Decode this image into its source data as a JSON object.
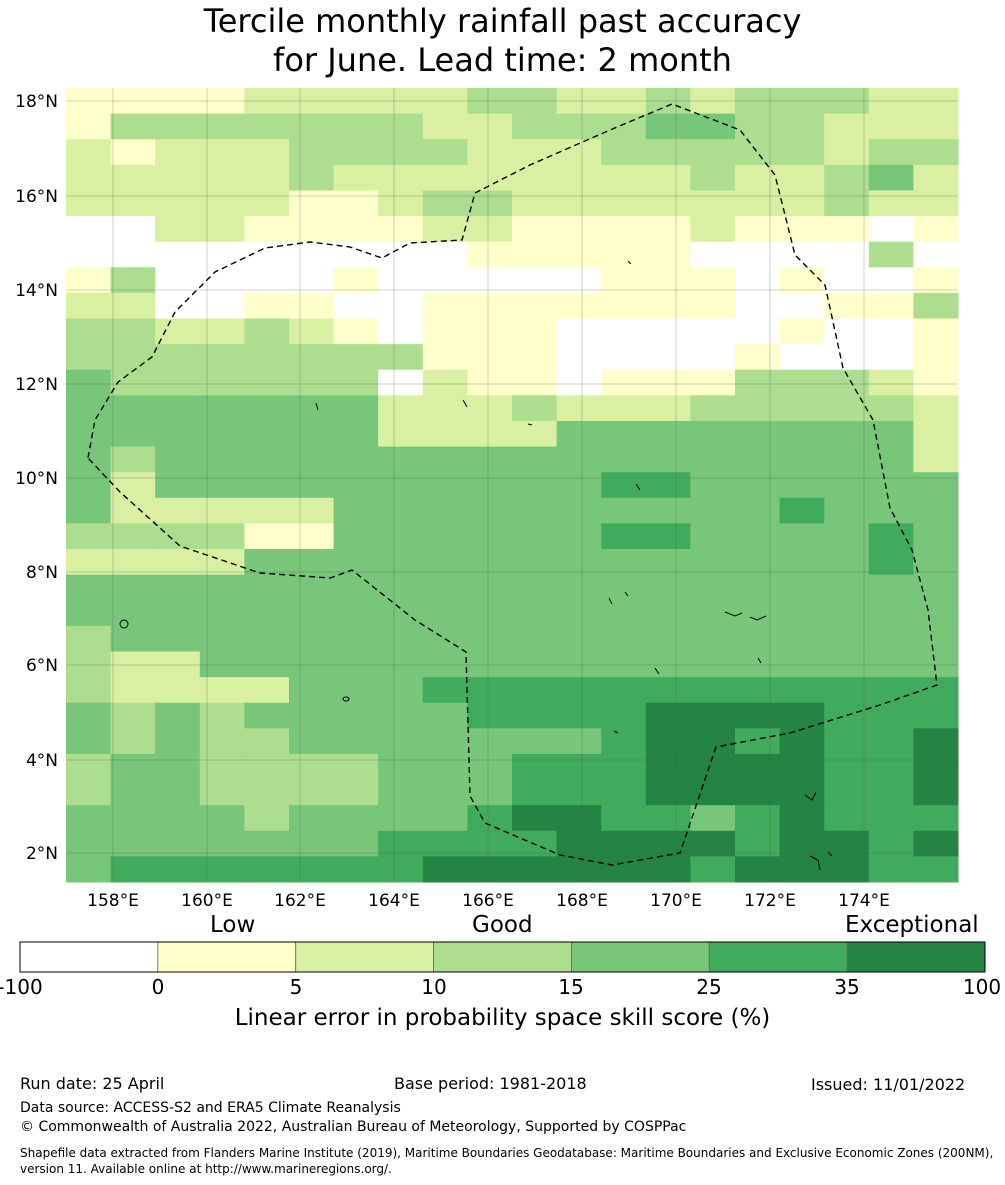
{
  "title": {
    "line1": "Tercile monthly rainfall past accuracy",
    "line2": "for June. Lead time: 2 month"
  },
  "map": {
    "lat_labels": [
      "18°N",
      "16°N",
      "14°N",
      "12°N",
      "10°N",
      "8°N",
      "6°N",
      "4°N",
      "2°N"
    ],
    "lon_labels": [
      "158°E",
      "160°E",
      "162°E",
      "164°E",
      "166°E",
      "168°E",
      "170°E",
      "172°E",
      "174°E"
    ],
    "grid_rows": [
      "11112222233223233322",
      "13333333223334433222",
      "21222333322233333233",
      "22222322222222322342",
      "22222112332222222322",
      "00221111221111211101",
      "00000000011111000030",
      "13000010000011101001",
      "22001100111111100113",
      "33223210111000001001",
      "33333333111000010001",
      "43333330211011133321",
      "44444442223222333332",
      "44444442222444444442",
      "43444444444444444442",
      "42444444444455444444",
      "42222244444444445444",
      "33331144444455444454",
      "22224444444444444454",
      "44444444444444444444",
      "44444444444444444444",
      "34444444444444444444",
      "32244444444444444444",
      "32222444555555555555",
      "43434444455556666555",
      "43433444444456656556",
      "34433334445556666556",
      "34433334445556666556",
      "44443444456655456555",
      "44444445555666656656",
      "45555555666666566655"
    ],
    "colors": [
      "#ffffff",
      "#ffffcc",
      "#d9f0a3",
      "#addd8e",
      "#78c679",
      "#41ab5d",
      "#238443"
    ]
  },
  "colorbar": {
    "category_low": "Low",
    "category_good": "Good",
    "category_exceptional": "Exceptional",
    "ticks": [
      "-100",
      "0",
      "5",
      "10",
      "15",
      "25",
      "35",
      "100"
    ],
    "label": "Linear error in probability space skill score (%)"
  },
  "footer": {
    "run_date": "Run date: 25 April",
    "base_period": "Base period: 1981-2018",
    "issued": "Issued: 11/01/2022",
    "data_source": "Data source: ACCESS-S2 and ERA5 Climate Reanalysis",
    "copyright": "© Commonwealth of Australia 2022, Australian Bureau of Meteorology, Supported by COSPPac",
    "shapefile_line1": "Shapefile data extracted from Flanders Marine Institute (2019), Maritime Boundaries Geodatabase: Maritime Boundaries and Exclusive Economic Zones (200NM),",
    "shapefile_line2": "version 11. Available online at http://www.marineregions.org/."
  }
}
